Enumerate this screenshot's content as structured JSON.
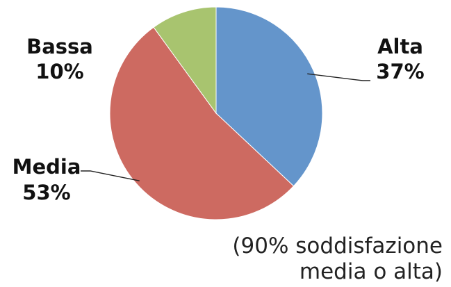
{
  "chart_data": {
    "type": "pie",
    "categories": [
      "Alta",
      "Media",
      "Bassa"
    ],
    "values": [
      37,
      53,
      10
    ],
    "value_labels": [
      "37%",
      "53%",
      "10%"
    ],
    "colors": [
      "#6495cb",
      "#cd6a61",
      "#a8c46f"
    ],
    "start": "top, clockwise",
    "legend": "none"
  },
  "note": {
    "line1": "(90% soddisfazione",
    "line2": "media o alta)"
  }
}
